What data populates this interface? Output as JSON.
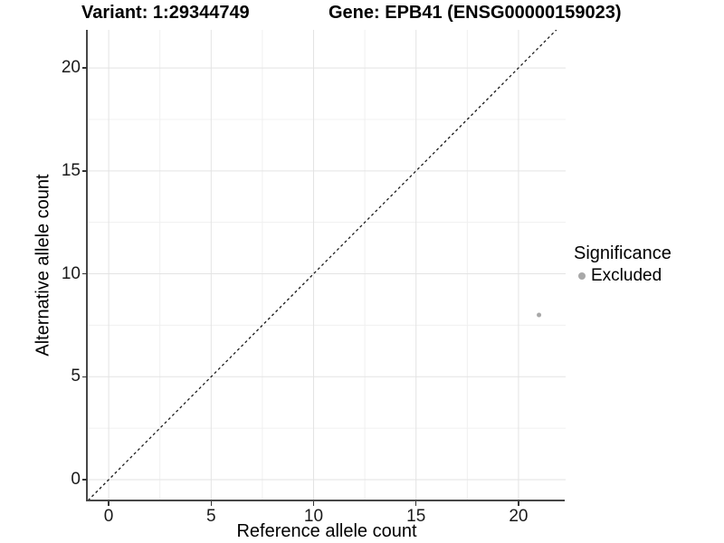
{
  "chart_data": {
    "type": "scatter",
    "titles": [
      "Variant: 1:29344749",
      "Gene: EPB41 (ENSG00000159023)"
    ],
    "xlabel": "Reference allele count",
    "ylabel": "Alternative allele count",
    "xlim": [
      -1.02,
      22.3
    ],
    "ylim": [
      -1.01,
      21.85
    ],
    "x_major_ticks": [
      0,
      5,
      10,
      15,
      20
    ],
    "y_major_ticks": [
      0,
      5,
      10,
      15,
      20
    ],
    "x_minor_ticks": [
      2.5,
      7.5,
      12.5,
      17.5
    ],
    "y_minor_ticks": [
      2.5,
      7.5,
      12.5,
      17.5
    ],
    "grid": {
      "major_color": "#e3e3e3",
      "minor_color": "#f0f0f0",
      "background": "#ffffff"
    },
    "reference_line": {
      "kind": "identity",
      "style": "dashed",
      "color": "#1a1a1a"
    },
    "series": [
      {
        "name": "Excluded",
        "color": "#a8a8a8",
        "point_radius": 2.5,
        "points": [
          {
            "x": 21,
            "y": 8
          }
        ]
      }
    ],
    "legend": {
      "title": "Significance",
      "position": "right",
      "entries": [
        {
          "label": "Excluded",
          "color": "#a8a8a8"
        }
      ]
    }
  }
}
